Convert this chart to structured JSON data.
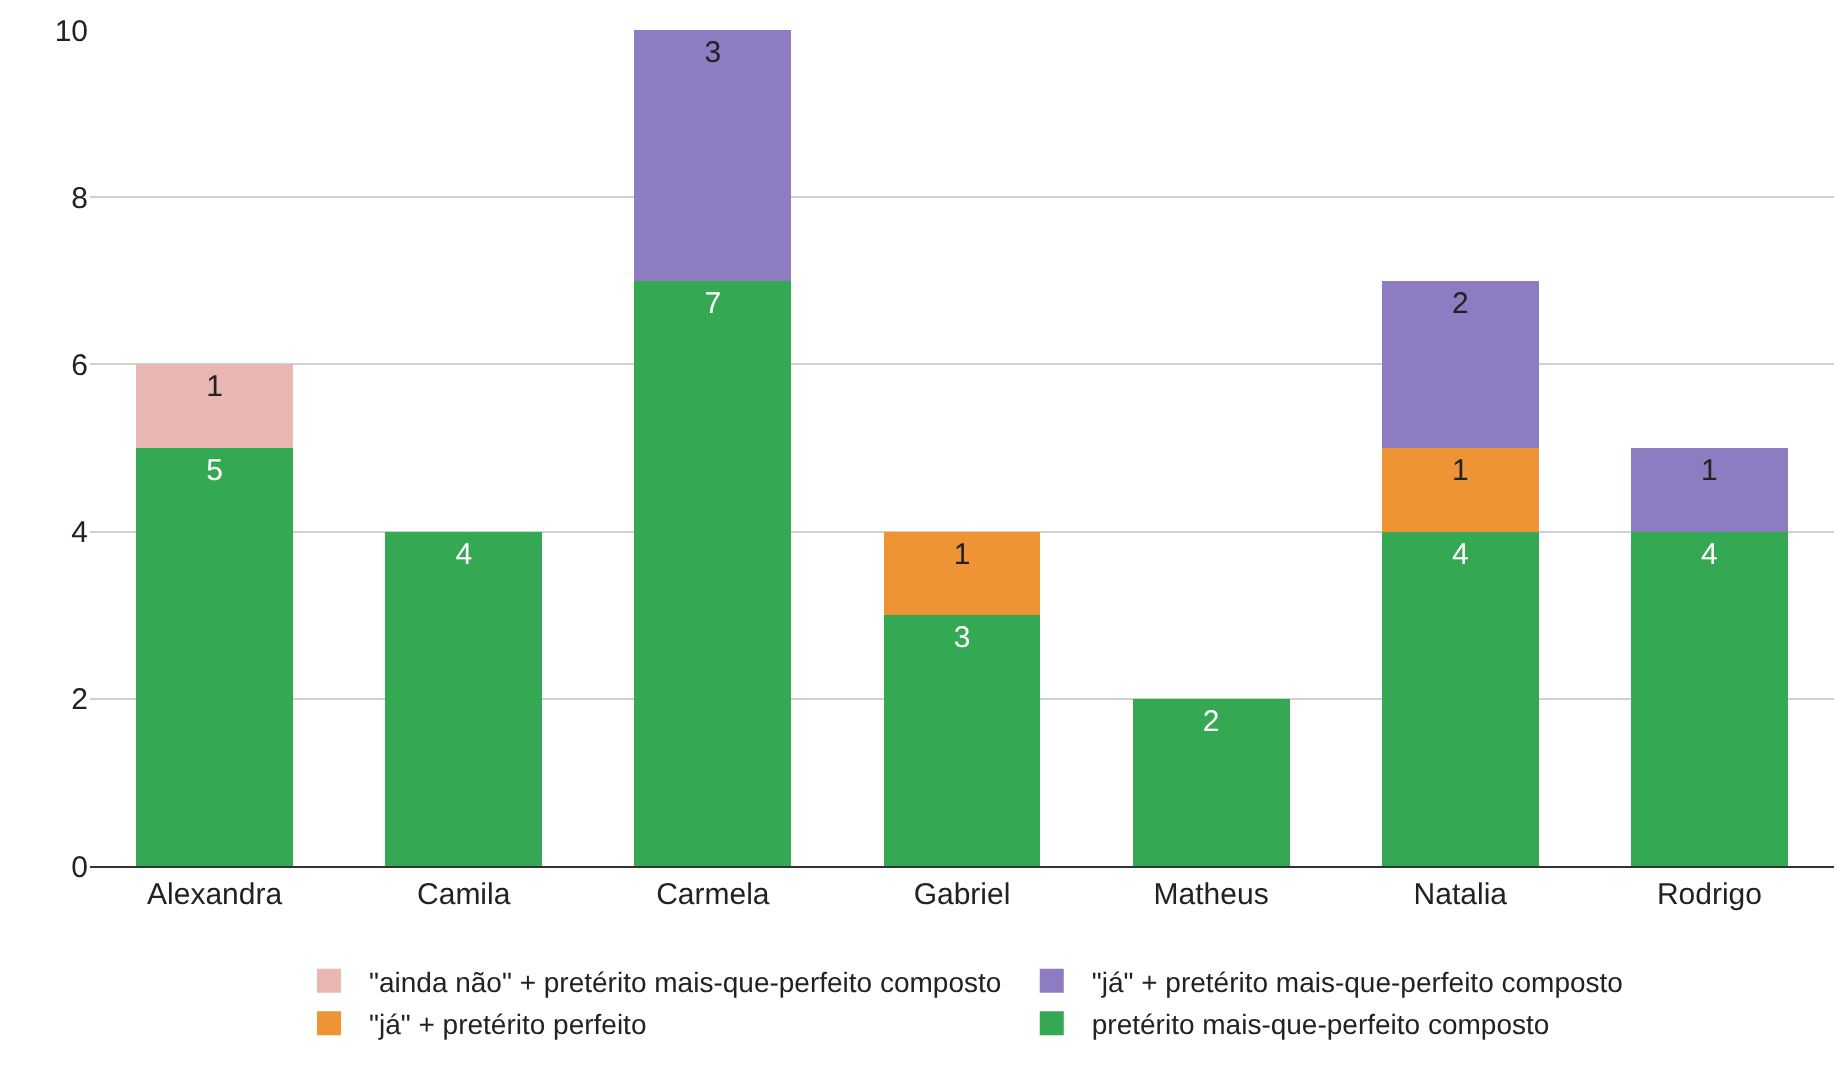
{
  "chart_data": {
    "type": "bar",
    "stacked": true,
    "categories": [
      "Alexandra",
      "Camila",
      "Carmela",
      "Gabriel",
      "Matheus",
      "Natalia",
      "Rodrigo"
    ],
    "series": [
      {
        "name": "pretérito mais-que-perfeito composto",
        "color": "#34a853",
        "values": [
          5,
          4,
          7,
          3,
          2,
          4,
          4
        ]
      },
      {
        "name": "\"já\" + pretérito perfeito",
        "color": "#ee9435",
        "values": [
          null,
          null,
          null,
          1,
          null,
          1,
          null
        ]
      },
      {
        "name": "\"ainda não\" + pretérito mais-que-perfeito composto",
        "color": "#e8b7b1",
        "values": [
          1,
          null,
          null,
          null,
          null,
          null,
          null
        ]
      },
      {
        "name": "\"já\" + pretérito mais-que-perfeito composto",
        "color": "#8e7cc3",
        "values": [
          null,
          null,
          3,
          null,
          null,
          2,
          1
        ]
      }
    ],
    "ylim": [
      0,
      10
    ],
    "yticks": [
      0,
      2,
      4,
      6,
      8,
      10
    ],
    "grid": "y",
    "legend": "bottom",
    "data_labels": true
  }
}
